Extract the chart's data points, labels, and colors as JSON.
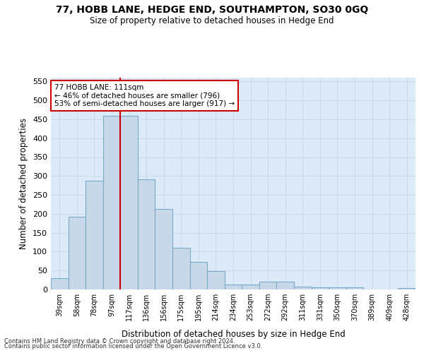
{
  "title": "77, HOBB LANE, HEDGE END, SOUTHAMPTON, SO30 0GQ",
  "subtitle": "Size of property relative to detached houses in Hedge End",
  "xlabel": "Distribution of detached houses by size in Hedge End",
  "ylabel": "Number of detached properties",
  "categories": [
    "39sqm",
    "58sqm",
    "78sqm",
    "97sqm",
    "117sqm",
    "136sqm",
    "156sqm",
    "175sqm",
    "195sqm",
    "214sqm",
    "234sqm",
    "253sqm",
    "272sqm",
    "292sqm",
    "311sqm",
    "331sqm",
    "350sqm",
    "370sqm",
    "389sqm",
    "409sqm",
    "428sqm"
  ],
  "values": [
    30,
    192,
    288,
    460,
    460,
    292,
    213,
    110,
    73,
    48,
    13,
    13,
    20,
    20,
    8,
    5,
    5,
    5,
    0,
    0,
    4
  ],
  "bar_color": "#c8d8e8",
  "bar_edge_color": "#7aaaca",
  "red_line_index": 3.5,
  "annotation_text_line1": "77 HOBB LANE: 111sqm",
  "annotation_text_line2": "← 46% of detached houses are smaller (796)",
  "annotation_text_line3": "53% of semi-detached houses are larger (917) →",
  "red_line_color": "#cc0000",
  "annotation_box_facecolor": "#ffffff",
  "annotation_box_edgecolor": "#cc0000",
  "grid_color": "#c8d8f0",
  "background_color": "#ddeaf7",
  "ylim": [
    0,
    560
  ],
  "yticks": [
    0,
    50,
    100,
    150,
    200,
    250,
    300,
    350,
    400,
    450,
    500,
    550
  ],
  "footnote1": "Contains HM Land Registry data © Crown copyright and database right 2024.",
  "footnote2": "Contains public sector information licensed under the Open Government Licence v3.0."
}
